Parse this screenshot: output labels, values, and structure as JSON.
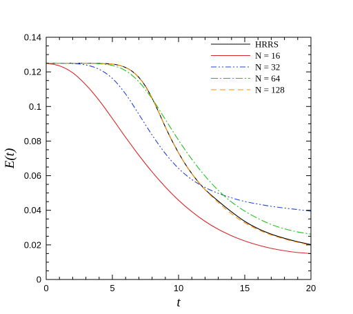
{
  "chart_data": {
    "type": "line",
    "xlabel": "t",
    "ylabel": "E(t)",
    "xlim": [
      0,
      20
    ],
    "ylim": [
      0,
      0.14
    ],
    "xticks": [
      "0",
      "5",
      "10",
      "15",
      "20"
    ],
    "yticks": [
      "0",
      "0.02",
      "0.04",
      "0.06",
      "0.08",
      "0.1",
      "0.12",
      "0.14"
    ],
    "grid": false,
    "legend_position": "top-right",
    "series": [
      {
        "name": "HRRS",
        "color": "#000000",
        "dash": "solid",
        "x": [
          0,
          1,
          2,
          3,
          4,
          5,
          5.5,
          6,
          6.5,
          7,
          7.5,
          8,
          8.5,
          9,
          9.5,
          10,
          10.5,
          11,
          11.5,
          12,
          13,
          14,
          15,
          16,
          17,
          18,
          19,
          20
        ],
        "y": [
          0.125,
          0.125,
          0.125,
          0.125,
          0.1249,
          0.1245,
          0.1238,
          0.1225,
          0.1203,
          0.1168,
          0.1117,
          0.1048,
          0.0967,
          0.0882,
          0.0803,
          0.0732,
          0.0668,
          0.0612,
          0.0563,
          0.052,
          0.0453,
          0.0391,
          0.0336,
          0.0294,
          0.0262,
          0.0238,
          0.0218,
          0.0202
        ]
      },
      {
        "name": "N = 16",
        "color": "#d62728",
        "dash": "solid",
        "x": [
          0,
          1,
          2,
          3,
          4,
          5,
          6,
          7,
          8,
          9,
          10,
          11,
          12,
          13,
          14,
          15,
          16,
          17,
          18,
          19,
          20
        ],
        "y": [
          0.125,
          0.1235,
          0.1195,
          0.1125,
          0.1035,
          0.093,
          0.0822,
          0.0718,
          0.0622,
          0.0535,
          0.0458,
          0.0392,
          0.0336,
          0.029,
          0.0253,
          0.0223,
          0.0199,
          0.018,
          0.0166,
          0.0156,
          0.015
        ]
      },
      {
        "name": "N = 32",
        "color": "#1f3fd6",
        "dash": "8 3 2 3 2 3",
        "x": [
          0,
          1,
          2,
          3,
          4,
          5,
          6,
          7,
          8,
          9,
          10,
          11,
          12,
          13,
          14,
          15,
          16,
          17,
          18,
          19,
          20
        ],
        "y": [
          0.125,
          0.125,
          0.1248,
          0.124,
          0.1215,
          0.1162,
          0.1072,
          0.0955,
          0.0835,
          0.0728,
          0.0642,
          0.0578,
          0.0532,
          0.0498,
          0.0472,
          0.0451,
          0.0436,
          0.0423,
          0.0413,
          0.0404,
          0.0395
        ]
      },
      {
        "name": "N = 64",
        "color": "#1fbf1f",
        "dash": "10 3 2 3",
        "x": [
          0,
          1,
          2,
          3,
          4,
          5,
          6,
          7,
          8,
          9,
          10,
          11,
          12,
          13,
          14,
          15,
          16,
          17,
          18,
          19,
          20
        ],
        "y": [
          0.125,
          0.125,
          0.125,
          0.125,
          0.1247,
          0.1237,
          0.1207,
          0.1143,
          0.1045,
          0.0925,
          0.0805,
          0.0695,
          0.0598,
          0.0515,
          0.0448,
          0.0395,
          0.0353,
          0.0318,
          0.0293,
          0.0275,
          0.0262
        ]
      },
      {
        "name": "N = 128",
        "color": "#ff8c00",
        "dash": "8 5",
        "x": [
          0,
          1,
          2,
          3,
          4,
          5,
          6,
          7,
          8,
          9,
          10,
          11,
          12,
          13,
          14,
          15,
          16,
          17,
          18,
          19,
          20
        ],
        "y": [
          0.125,
          0.125,
          0.125,
          0.125,
          0.1249,
          0.1245,
          0.1225,
          0.1168,
          0.1048,
          0.0882,
          0.0732,
          0.0612,
          0.052,
          0.0445,
          0.038,
          0.0328,
          0.0288,
          0.0258,
          0.0234,
          0.0215,
          0.0198
        ]
      }
    ]
  }
}
